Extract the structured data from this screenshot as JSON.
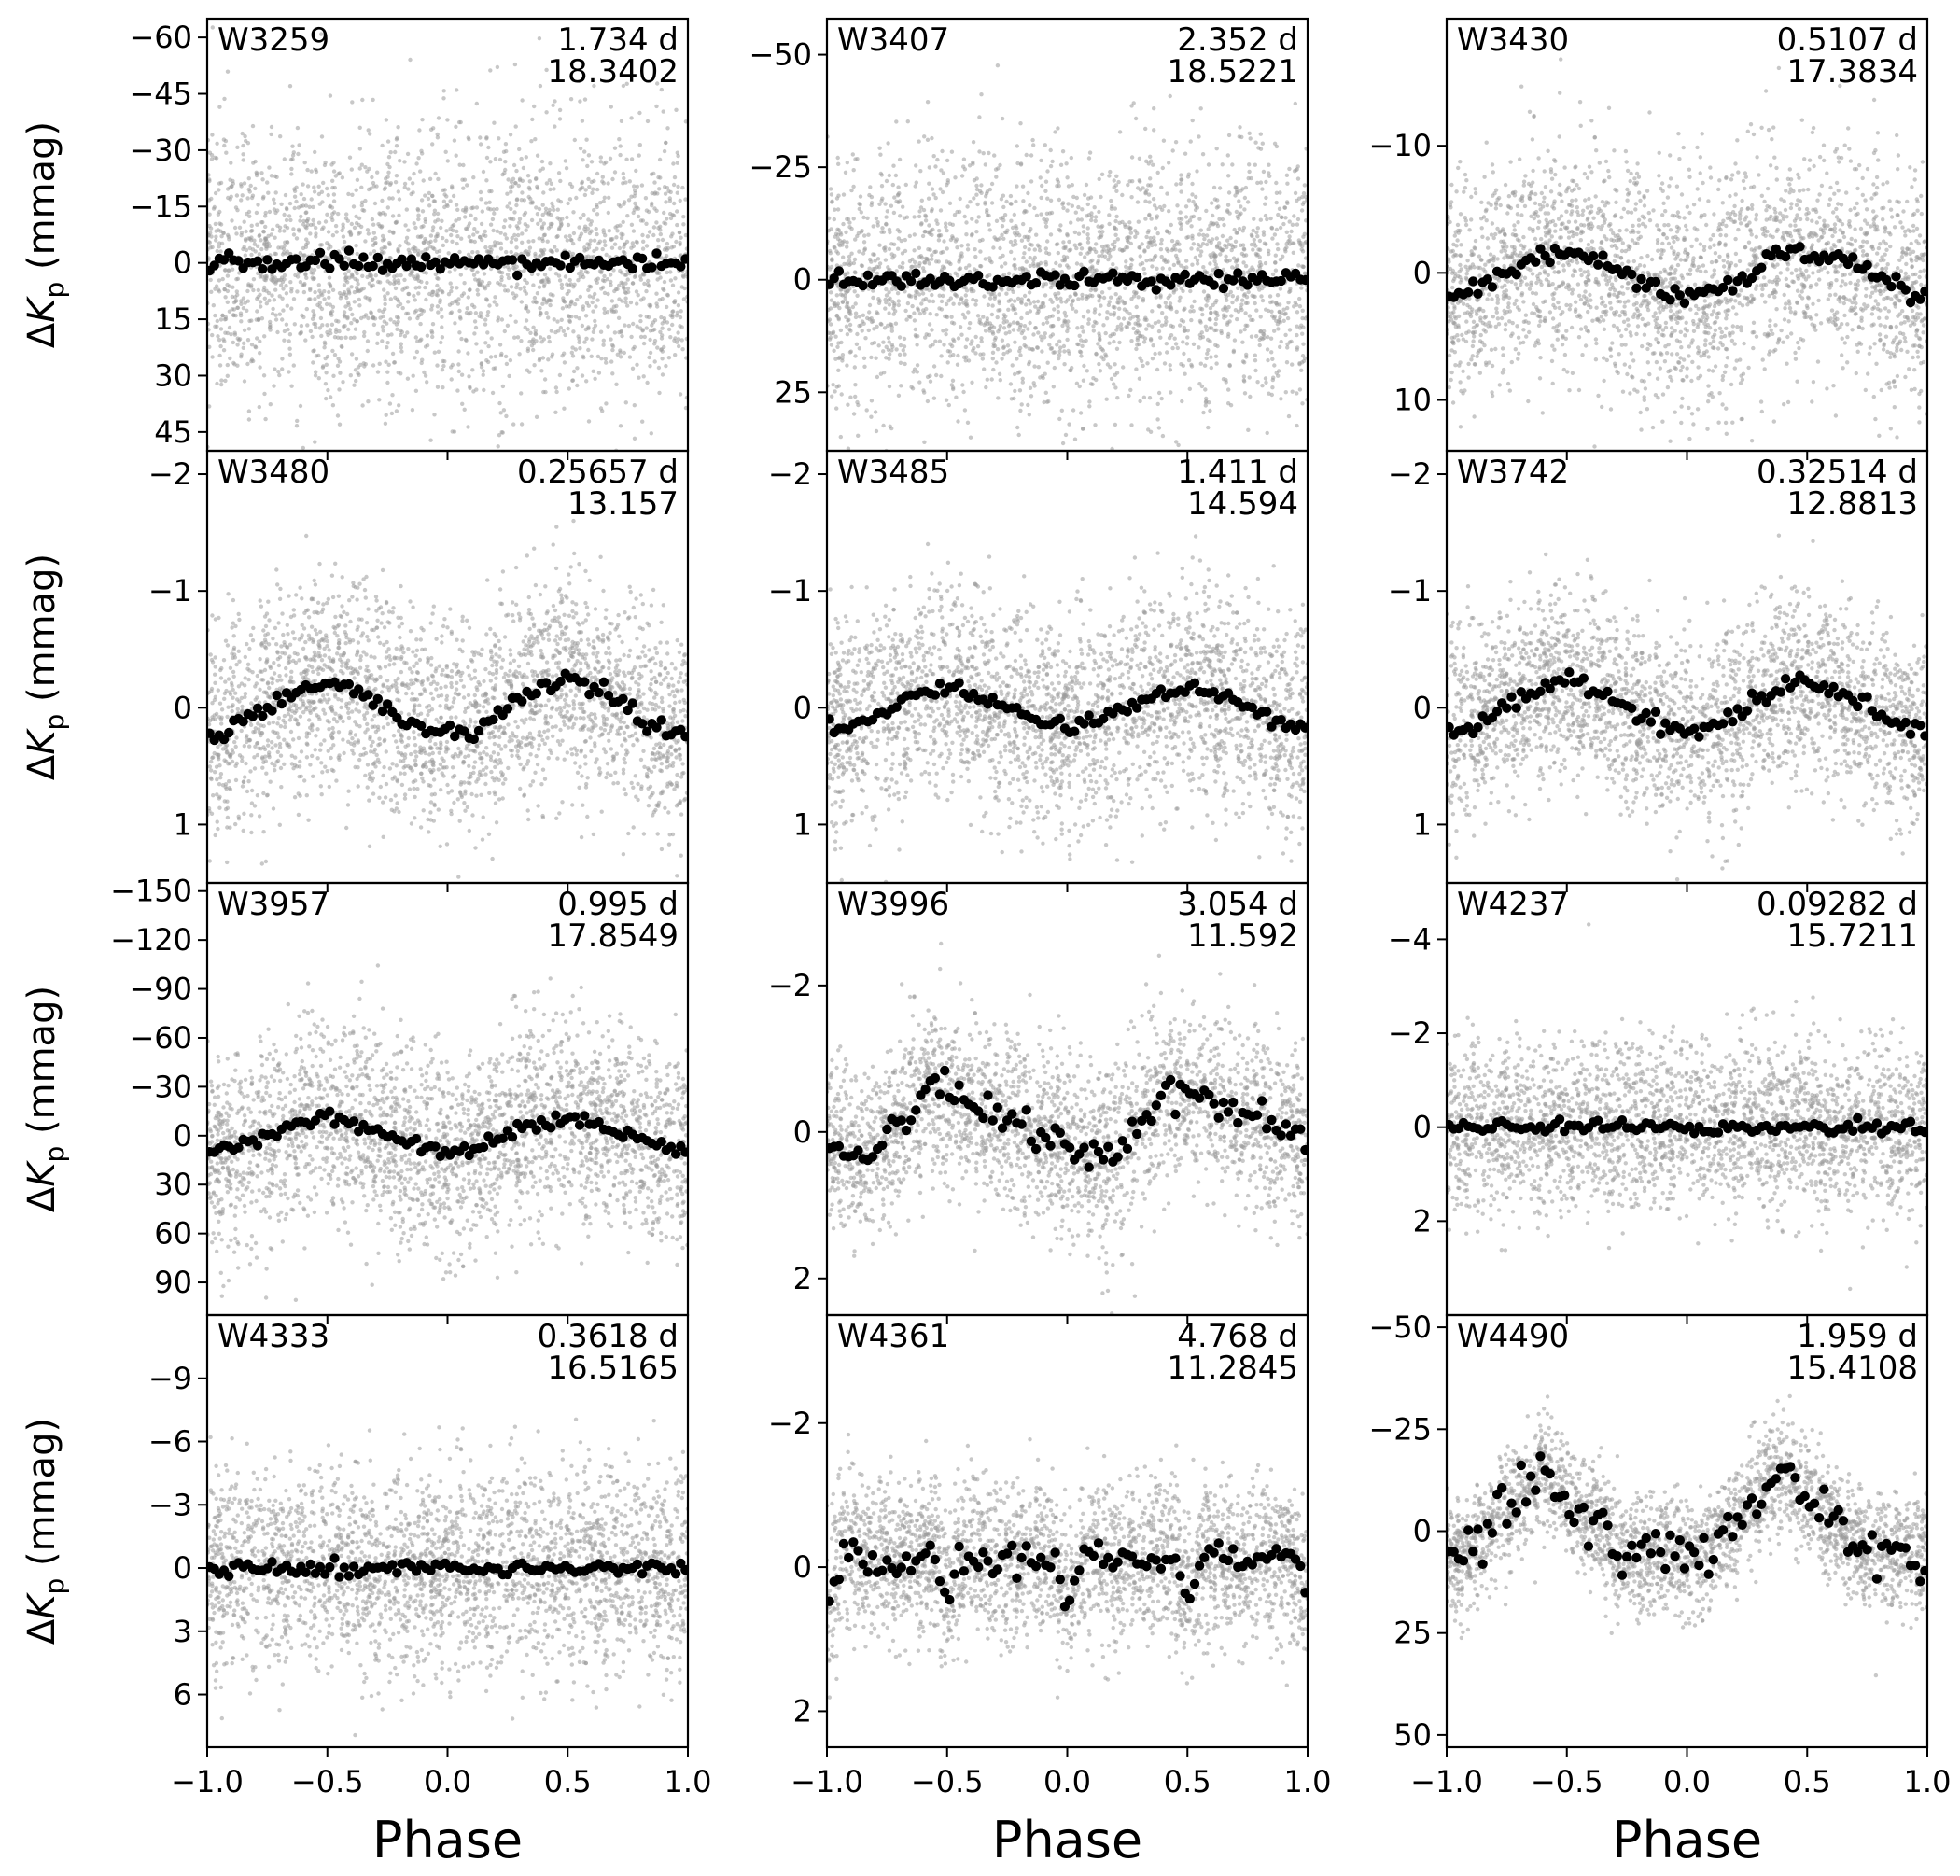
{
  "figure": {
    "x_axis_title": "Phase",
    "y_axis_title": "ΔK",
    "y_axis_title_sub": "p",
    "y_axis_title_unit": "(mmag)",
    "x_ticks": [
      "−1.0",
      "−0.5",
      "0.0",
      "0.5",
      "1.0"
    ],
    "colors": {
      "raw_points": "#9a9a9a",
      "binned_points": "#000000",
      "frame": "#000000"
    }
  },
  "chart_data": [
    {
      "type": "scatter",
      "id": "W3259",
      "period": "1.734 d",
      "freq": "18.3402",
      "ylim": [
        50,
        -65
      ],
      "yticks": [
        -60,
        -45,
        -30,
        -15,
        0,
        15,
        30,
        45
      ],
      "ytick_labels": [
        "−60",
        "−45",
        "−30",
        "−15",
        "0",
        "15",
        "30",
        "45"
      ],
      "amp": 3,
      "shape": "flat",
      "raw_sigma": 18
    },
    {
      "type": "scatter",
      "id": "W3407",
      "period": "2.352 d",
      "freq": "18.5221",
      "ylim": [
        38,
        -58
      ],
      "yticks": [
        -50,
        -25,
        0,
        25
      ],
      "ytick_labels": [
        "−50",
        "−25",
        "0",
        "25"
      ],
      "amp": 3,
      "shape": "flat",
      "raw_sigma": 14
    },
    {
      "type": "scatter",
      "id": "W3430",
      "period": "0.5107 d",
      "freq": "17.3834",
      "ylim": [
        14,
        -20
      ],
      "yticks": [
        -10,
        0,
        10
      ],
      "ytick_labels": [
        "−10",
        "0",
        "10"
      ],
      "amp": 2,
      "shape": "wave",
      "raw_sigma": 4.5
    },
    {
      "type": "scatter",
      "id": "W3480",
      "period": "0.25657 d",
      "freq": "13.157",
      "ylim": [
        1.5,
        -2.2
      ],
      "yticks": [
        -2,
        -1,
        0,
        1
      ],
      "ytick_labels": [
        "−2",
        "−1",
        "0",
        "1"
      ],
      "amp": 0.22,
      "shape": "sine",
      "raw_sigma": 0.45
    },
    {
      "type": "scatter",
      "id": "W3485",
      "period": "1.411 d",
      "freq": "14.594",
      "ylim": [
        1.5,
        -2.2
      ],
      "yticks": [
        -2,
        -1,
        0,
        1
      ],
      "ytick_labels": [
        "−2",
        "−1",
        "0",
        "1"
      ],
      "amp": 0.15,
      "shape": "sine",
      "raw_sigma": 0.45
    },
    {
      "type": "scatter",
      "id": "W3742",
      "period": "0.32514 d",
      "freq": "12.8813",
      "ylim": [
        1.5,
        -2.2
      ],
      "yticks": [
        -2,
        -1,
        0,
        1
      ],
      "ytick_labels": [
        "−2",
        "−1",
        "0",
        "1"
      ],
      "amp": 0.2,
      "shape": "sine",
      "raw_sigma": 0.4
    },
    {
      "type": "scatter",
      "id": "W3957",
      "period": "0.995 d",
      "freq": "17.8549",
      "ylim": [
        110,
        -155
      ],
      "yticks": [
        -150,
        -120,
        -90,
        -60,
        -30,
        0,
        30,
        60,
        90
      ],
      "ytick_labels": [
        "−150",
        "−120",
        "−90",
        "−60",
        "−30",
        "0",
        "30",
        "60",
        "90"
      ],
      "amp": 10,
      "shape": "sine",
      "raw_sigma": 30
    },
    {
      "type": "scatter",
      "id": "W3996",
      "period": "3.054 d",
      "freq": "11.592",
      "ylim": [
        2.5,
        -3.4
      ],
      "yticks": [
        -2,
        0,
        2
      ],
      "ytick_labels": [
        "−2",
        "0",
        "2"
      ],
      "amp": 0.6,
      "shape": "sawtooth",
      "raw_sigma": 0.6
    },
    {
      "type": "scatter",
      "id": "W4237",
      "period": "0.09282 d",
      "freq": "15.7211",
      "ylim": [
        4,
        -5.2
      ],
      "yticks": [
        -4,
        -2,
        0,
        2
      ],
      "ytick_labels": [
        "−4",
        "−2",
        "0",
        "2"
      ],
      "amp": 0.3,
      "shape": "flat",
      "raw_sigma": 0.9
    },
    {
      "type": "scatter",
      "id": "W4333",
      "period": "0.3618 d",
      "freq": "16.5165",
      "ylim": [
        8.5,
        -12
      ],
      "yticks": [
        -9,
        -6,
        -3,
        0,
        3,
        6
      ],
      "ytick_labels": [
        "−9",
        "−6",
        "−3",
        "0",
        "3",
        "6"
      ],
      "amp": 0.6,
      "shape": "flat",
      "raw_sigma": 2.4
    },
    {
      "type": "scatter",
      "id": "W4361",
      "period": "4.768 d",
      "freq": "11.2845",
      "ylim": [
        2.5,
        -3.5
      ],
      "yticks": [
        -2,
        0,
        2
      ],
      "ytick_labels": [
        "−2",
        "0",
        "2"
      ],
      "amp": 0.5,
      "shape": "double",
      "raw_sigma": 0.55
    },
    {
      "type": "scatter",
      "id": "W4490",
      "period": "1.959 d",
      "freq": "15.4108",
      "ylim": [
        53,
        -53
      ],
      "yticks": [
        -50,
        -25,
        0,
        25,
        50
      ],
      "ytick_labels": [
        "−50",
        "−25",
        "0",
        "25",
        "50"
      ],
      "amp": 18,
      "shape": "eclipse",
      "raw_sigma": 7
    }
  ]
}
